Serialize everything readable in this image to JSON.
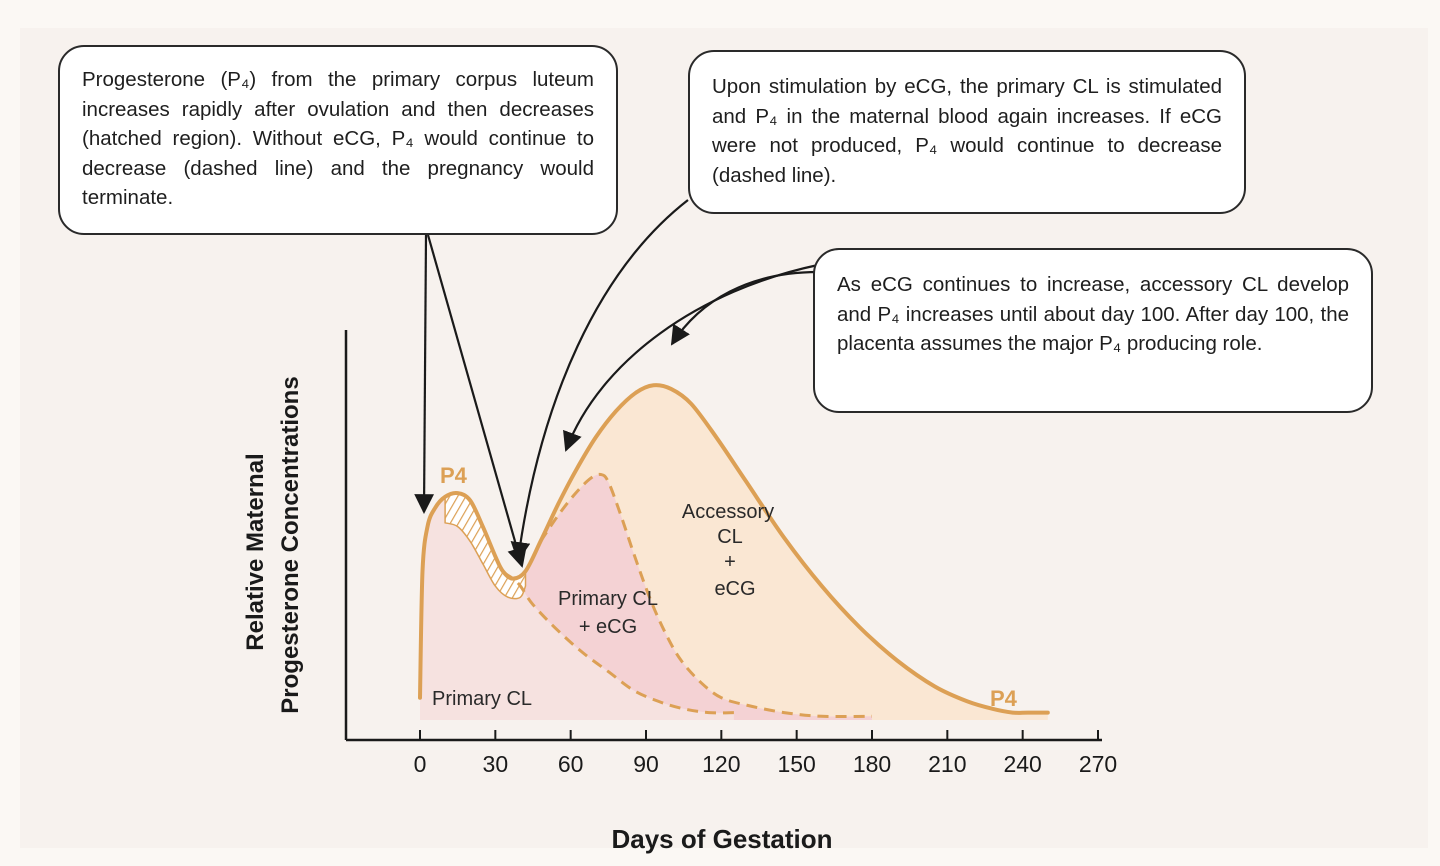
{
  "chart_data": {
    "type": "line",
    "title": "",
    "xlabel": "Days of Gestation",
    "ylabel_line1": "Relative Maternal",
    "ylabel_line2": "Progesterone Concentrations",
    "xlim": [
      0,
      270
    ],
    "ylim": [
      0,
      100
    ],
    "x_ticks": [
      0,
      30,
      60,
      90,
      120,
      150,
      180,
      210,
      240,
      270
    ],
    "x_tick_labels": [
      "0",
      "30",
      "60",
      "90",
      "120",
      "150",
      "180",
      "210",
      "240",
      "270"
    ],
    "series": [
      {
        "name": "Maternal P4 (solid)",
        "style": "solid",
        "x": [
          0,
          1,
          3,
          6,
          10,
          15,
          20,
          25,
          30,
          33,
          37,
          42,
          48,
          55,
          62,
          70,
          78,
          86,
          93,
          100,
          108,
          118,
          130,
          145,
          160,
          175,
          190,
          205,
          218,
          228,
          236,
          242,
          250
        ],
        "y": [
          6,
          40,
          52,
          57,
          60,
          61,
          59,
          52,
          44,
          40,
          38,
          40,
          48,
          58,
          67,
          76,
          83,
          88,
          90,
          89,
          85,
          76,
          64,
          49,
          36,
          25,
          16,
          9,
          5,
          3,
          2,
          2,
          2
        ]
      },
      {
        "name": "P4 without eCG (dashed)",
        "style": "dashed",
        "x": [
          30,
          33,
          37,
          40,
          45,
          55,
          65,
          75,
          85,
          95,
          105,
          115,
          125
        ],
        "y": [
          44,
          40,
          38,
          36,
          31,
          24,
          18,
          13,
          8,
          5,
          3,
          2,
          2
        ]
      },
      {
        "name": "Primary CL without eCG stimulation (dashed)",
        "style": "dashed",
        "x": [
          48,
          55,
          62,
          68,
          72,
          75,
          80,
          86,
          92,
          98,
          104,
          112,
          120,
          130,
          145,
          160,
          180
        ],
        "y": [
          48,
          55,
          61,
          65,
          66,
          64,
          55,
          43,
          32,
          23,
          16,
          10,
          6,
          4,
          2,
          1,
          1
        ]
      }
    ],
    "regions": [
      "Primary CL",
      "Primary CL + eCG",
      "Accessory CL + eCG"
    ],
    "region_labels": {
      "primary": "Primary CL",
      "primary_ecg": [
        "Primary CL",
        "+ eCG"
      ],
      "accessory": [
        "Accessory",
        "CL",
        "+",
        "eCG"
      ]
    },
    "peak_labels": [
      "P4",
      "P4"
    ],
    "colors": {
      "curve": "#dca055",
      "fill_primary": "#f6e2e0",
      "fill_primary_ecg": "#f4d2d4",
      "fill_accessory": "#fae7d3",
      "axis": "#1a1a1a",
      "arrow": "#1a1a1a"
    }
  },
  "callouts": {
    "top_left": "Progesterone (P₄) from the primary corpus luteum increases rapidly after ovulation and then decreases (hatched region). Without eCG, P₄ would continue to decrease (dashed line) and the pregnancy would terminate.",
    "top_right": "Upon stimulation by eCG, the primary CL is stimulated and P₄ in the maternal blood again increases. If eCG were not produced, P₄ would continue to decrease (dashed line).",
    "right": "As eCG continues to increase, accessory CL develop and P₄ increases until about day 100. After day 100, the placenta assumes the major P₄ producing role."
  }
}
